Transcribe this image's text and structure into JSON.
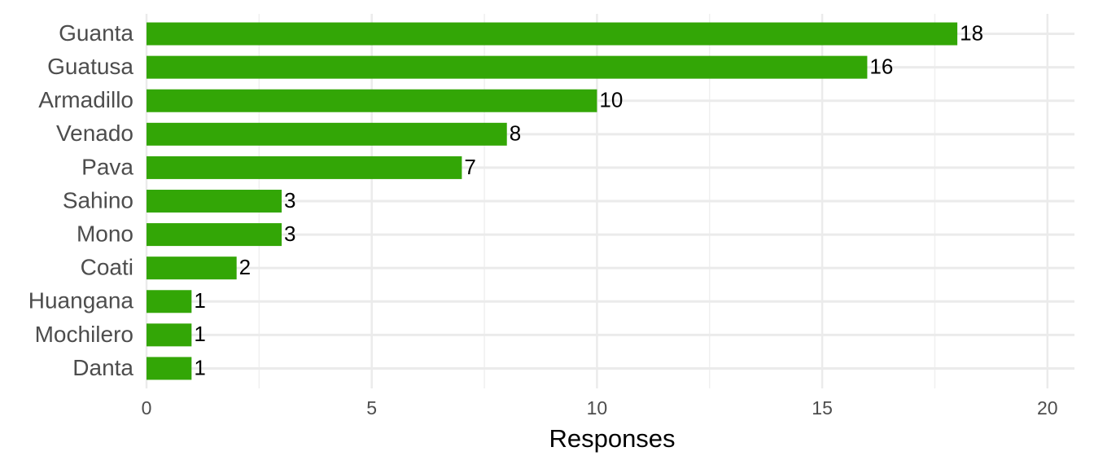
{
  "chart_data": {
    "type": "barh",
    "x_label": "Responses",
    "categories": [
      "Guanta",
      "Guatusa",
      "Armadillo",
      "Venado",
      "Pava",
      "Sahino",
      "Mono",
      "Coati",
      "Huangana",
      "Mochilero",
      "Danta"
    ],
    "values": [
      18,
      16,
      10,
      8,
      7,
      3,
      3,
      2,
      1,
      1,
      1
    ],
    "color": "#33a606",
    "xlim": [
      0,
      20.6
    ],
    "xticks": [
      0,
      5,
      10,
      15,
      20
    ],
    "x_minor_ticks": [
      2.5,
      7.5,
      12.5,
      17.5
    ],
    "grid": true,
    "data_labels": true
  }
}
